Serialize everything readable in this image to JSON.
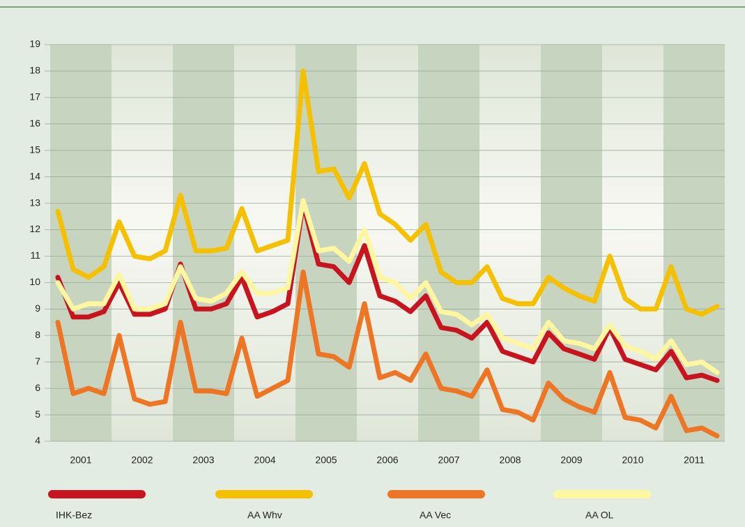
{
  "chart_data": {
    "type": "line",
    "categories": [
      null,
      "2001",
      null,
      null,
      null,
      "2002",
      null,
      null,
      null,
      "2003",
      null,
      null,
      null,
      "2004",
      null,
      null,
      null,
      "2005",
      null,
      null,
      null,
      "2006",
      null,
      null,
      null,
      "2007",
      null,
      null,
      null,
      "2008",
      null,
      null,
      null,
      "2009",
      null,
      null,
      null,
      "2010",
      null,
      null,
      null,
      "2011",
      null,
      null
    ],
    "ylim": [
      4,
      19
    ],
    "yticks": [
      4,
      5,
      6,
      7,
      8,
      9,
      10,
      11,
      12,
      13,
      14,
      15,
      16,
      17,
      18,
      19
    ],
    "grid": true,
    "series": [
      {
        "name": "IHK-Bez",
        "color": "#c8141e",
        "values": [
          10.2,
          8.7,
          8.7,
          8.9,
          10.0,
          8.8,
          8.8,
          9.0,
          10.7,
          9.0,
          9.0,
          9.2,
          10.2,
          8.7,
          8.9,
          9.2,
          13.0,
          10.7,
          10.6,
          10.0,
          11.4,
          9.5,
          9.3,
          8.9,
          9.5,
          8.3,
          8.2,
          7.9,
          8.5,
          7.4,
          7.2,
          7.0,
          8.1,
          7.5,
          7.3,
          7.1,
          8.3,
          7.1,
          6.9,
          6.7,
          7.4,
          6.4,
          6.5,
          6.3
        ]
      },
      {
        "name": "AA Whv",
        "color": "#f5c000",
        "values": [
          12.7,
          10.5,
          10.2,
          10.6,
          12.3,
          11.0,
          10.9,
          11.2,
          13.3,
          11.2,
          11.2,
          11.3,
          12.8,
          11.2,
          11.4,
          11.6,
          18.0,
          14.2,
          14.3,
          13.2,
          14.5,
          12.6,
          12.2,
          11.6,
          12.2,
          10.4,
          10.0,
          10.0,
          10.6,
          9.4,
          9.2,
          9.2,
          10.2,
          9.8,
          9.5,
          9.3,
          11.0,
          9.4,
          9.0,
          9.0,
          10.6,
          9.0,
          8.8,
          9.1
        ]
      },
      {
        "name": "AA Vec",
        "color": "#ee7523",
        "values": [
          8.5,
          5.8,
          6.0,
          5.8,
          8.0,
          5.6,
          5.4,
          5.5,
          8.5,
          5.9,
          5.9,
          5.8,
          7.9,
          5.7,
          6.0,
          6.3,
          10.4,
          7.3,
          7.2,
          6.8,
          9.2,
          6.4,
          6.6,
          6.3,
          7.3,
          6.0,
          5.9,
          5.7,
          6.7,
          5.2,
          5.1,
          4.8,
          6.2,
          5.6,
          5.3,
          5.1,
          6.6,
          4.9,
          4.8,
          4.5,
          5.7,
          4.4,
          4.5,
          4.2
        ]
      },
      {
        "name": "AA OL",
        "color": "#fff6a0",
        "values": [
          10.0,
          9.0,
          9.2,
          9.2,
          10.3,
          9.0,
          9.0,
          9.2,
          10.6,
          9.4,
          9.3,
          9.6,
          10.4,
          9.6,
          9.6,
          9.8,
          13.1,
          11.2,
          11.3,
          10.8,
          12.0,
          10.2,
          10.0,
          9.4,
          10.0,
          8.9,
          8.8,
          8.4,
          8.8,
          7.9,
          7.7,
          7.5,
          8.5,
          7.8,
          7.7,
          7.5,
          8.4,
          7.6,
          7.4,
          7.1,
          7.8,
          6.9,
          7.0,
          6.6
        ]
      }
    ]
  }
}
